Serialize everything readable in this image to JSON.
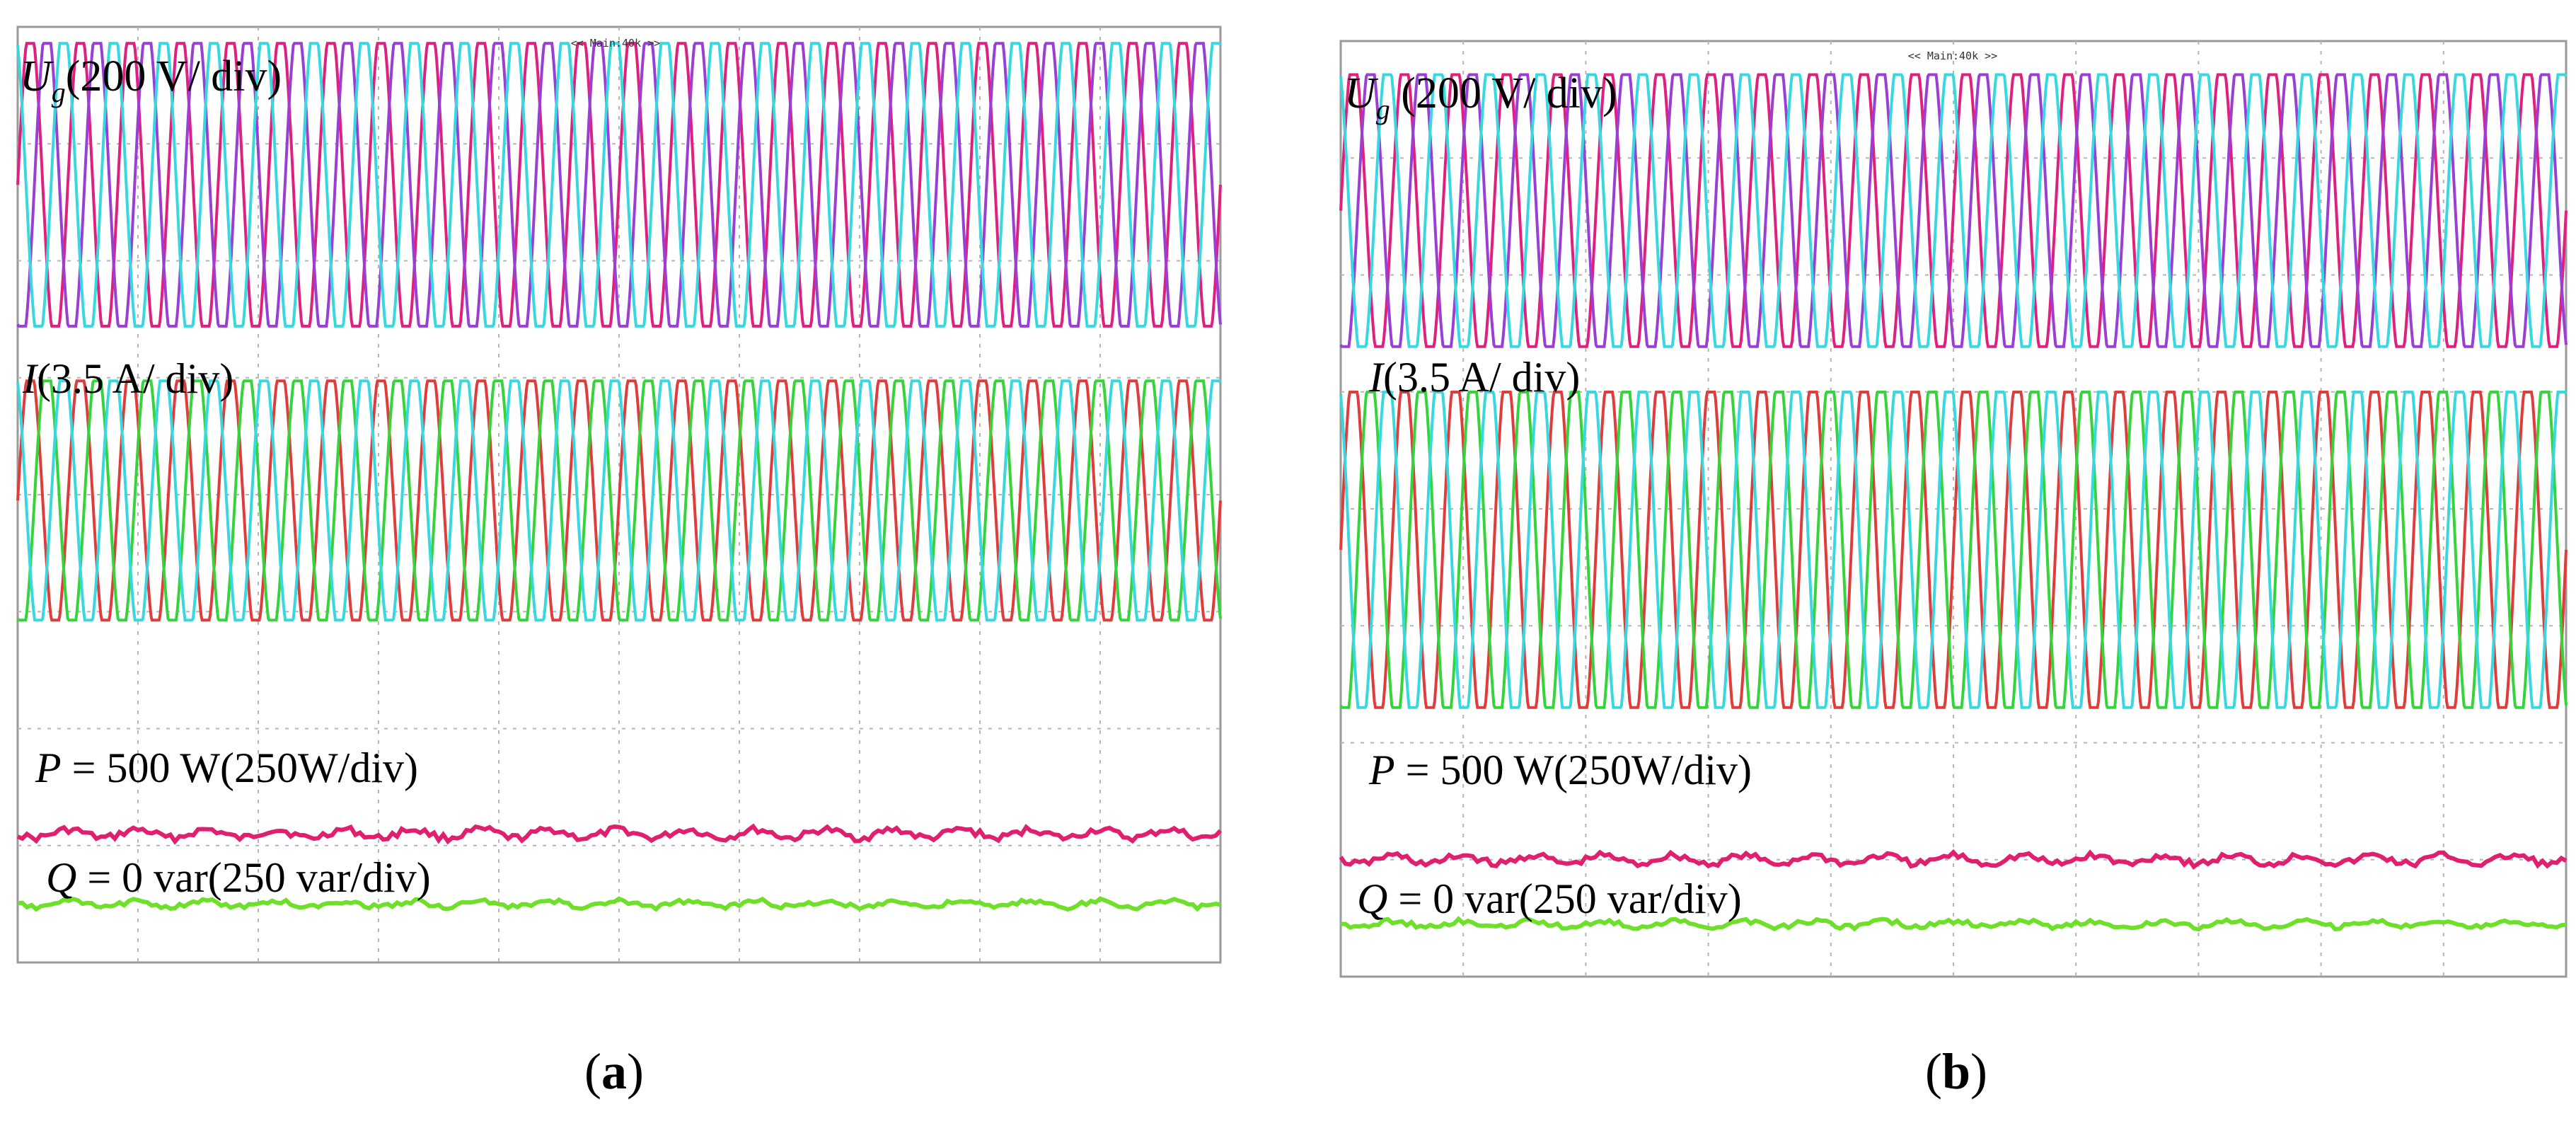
{
  "chart_data": [
    {
      "type": "line",
      "panel_caption": "(a)",
      "caption_letter": "a",
      "header_text": "<< Main:40k >>",
      "label_voltage": {
        "symbol": "U",
        "sub": "g",
        "rest": "(200 V/ div)"
      },
      "label_current": {
        "symbol": "I",
        "rest": "(3.5 A/ div)"
      },
      "label_p": {
        "symbol": "P",
        "rest": " = 500 W(250W/div)"
      },
      "label_q": {
        "symbol": "Q",
        "rest": " = 0 var(250 var/div)"
      },
      "grid": true,
      "divisions": {
        "x": 10,
        "y": 8
      },
      "voltage": {
        "cycles": 24,
        "amplitude_div": 1.3,
        "center_div": 1.35,
        "colors": [
          "#e0207e",
          "#9a3fd6",
          "#38d8e0"
        ]
      },
      "current": {
        "cycles": 24,
        "amplitude_div": 1.1,
        "center_div": 4.05,
        "colors": [
          "#e03c3c",
          "#35d43a",
          "#38d8e0"
        ]
      },
      "active_power_w": 500,
      "reactive_power_var": 0,
      "power_trace": {
        "level_div": 6.9,
        "color": "#e0206e"
      },
      "reactive_trace": {
        "level_div": 7.5,
        "color": "#6ee02a"
      }
    },
    {
      "type": "line",
      "panel_caption": "(b)",
      "caption_letter": "b",
      "header_text": "<< Main:40k >>",
      "label_voltage": {
        "symbol": "U",
        "sub": "g",
        "rest": " (200 V/ div)"
      },
      "label_current": {
        "symbol": "I",
        "rest": "(3.5 A/ div)"
      },
      "label_p": {
        "symbol": "P",
        "rest": " = 500 W(250W/div)"
      },
      "label_q": {
        "symbol": "Q",
        "rest": " = 0 var(250 var/div)"
      },
      "grid": true,
      "divisions": {
        "x": 10,
        "y": 8
      },
      "voltage": {
        "cycles": 24,
        "amplitude_div": 1.25,
        "center_div": 1.45,
        "colors": [
          "#e0207e",
          "#9a3fd6",
          "#38d8e0"
        ]
      },
      "current": {
        "cycles": 24,
        "amplitude_div": 1.45,
        "center_div": 4.35,
        "colors": [
          "#e03c3c",
          "#35d43a",
          "#38d8e0"
        ]
      },
      "active_power_w": 500,
      "reactive_power_var": 0,
      "power_trace": {
        "level_div": 7.0,
        "color": "#e0206e"
      },
      "reactive_trace": {
        "level_div": 7.55,
        "color": "#6ee02a"
      }
    }
  ]
}
